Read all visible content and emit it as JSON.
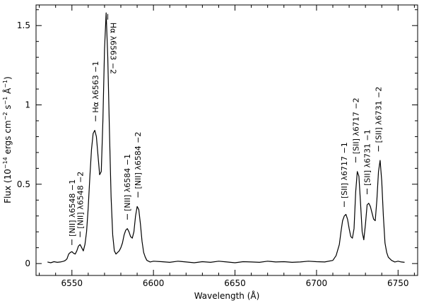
{
  "chart_data": {
    "type": "line",
    "title": "",
    "xlabel": "Wavelength (Å)",
    "ylabel": "Flux (10^-14 ergs cm^-2 s^-1 Å^-1)",
    "ylabel_parts": {
      "prefix": "Flux (10",
      "exp1": "−14",
      "mid1": " ergs cm",
      "exp2": "−2",
      "mid2": " s",
      "exp3": "−1",
      "mid3": " Å",
      "exp4": "−1",
      "suffix": ")"
    },
    "xlim": [
      6528,
      6762
    ],
    "ylim": [
      -0.075,
      1.63
    ],
    "xticks": [
      6550,
      6600,
      6650,
      6700,
      6750
    ],
    "yticks": [
      0,
      0.5,
      1,
      1.5
    ],
    "xtick_labels": [
      "6550",
      "6600",
      "6650",
      "6700",
      "6750"
    ],
    "ytick_labels": [
      "0",
      "0.5",
      "1",
      "1.5"
    ],
    "grid": false,
    "series": [
      {
        "x": [
          6535,
          6537,
          6539,
          6541,
          6543,
          6545,
          6546,
          6547,
          6548,
          6549,
          6550,
          6551,
          6552,
          6553,
          6554,
          6555,
          6556,
          6557,
          6558,
          6559,
          6560,
          6561,
          6562,
          6563,
          6564,
          6565,
          6566,
          6567,
          6568,
          6569,
          6570,
          6571,
          6572,
          6573,
          6574,
          6575,
          6576,
          6577,
          6578,
          6579,
          6580,
          6581,
          6582,
          6583,
          6584,
          6585,
          6586,
          6587,
          6588,
          6589,
          6590,
          6591,
          6592,
          6593,
          6594,
          6595,
          6596,
          6598,
          6600,
          6605,
          6610,
          6615,
          6620,
          6625,
          6630,
          6635,
          6640,
          6645,
          6650,
          6655,
          6660,
          6665,
          6670,
          6675,
          6680,
          6685,
          6690,
          6695,
          6700,
          6705,
          6710,
          6712,
          6714,
          6715,
          6716,
          6717,
          6718,
          6719,
          6720,
          6721,
          6722,
          6723,
          6724,
          6725,
          6726,
          6727,
          6728,
          6729,
          6730,
          6731,
          6732,
          6733,
          6734,
          6735,
          6736,
          6737,
          6738,
          6739,
          6740,
          6741,
          6742,
          6743,
          6744,
          6746,
          6748,
          6750,
          6752,
          6754
        ],
        "y": [
          0.01,
          0.005,
          0.012,
          0.008,
          0.01,
          0.015,
          0.02,
          0.03,
          0.06,
          0.07,
          0.075,
          0.065,
          0.06,
          0.08,
          0.11,
          0.12,
          0.1,
          0.08,
          0.12,
          0.2,
          0.35,
          0.55,
          0.72,
          0.82,
          0.84,
          0.8,
          0.68,
          0.56,
          0.58,
          0.9,
          1.35,
          1.58,
          1.3,
          0.85,
          0.42,
          0.18,
          0.08,
          0.06,
          0.07,
          0.08,
          0.1,
          0.13,
          0.18,
          0.21,
          0.22,
          0.2,
          0.17,
          0.16,
          0.2,
          0.3,
          0.36,
          0.34,
          0.25,
          0.14,
          0.07,
          0.04,
          0.02,
          0.01,
          0.015,
          0.012,
          0.008,
          0.015,
          0.01,
          0.005,
          0.012,
          0.008,
          0.015,
          0.01,
          0.005,
          0.012,
          0.01,
          0.008,
          0.015,
          0.01,
          0.012,
          0.008,
          0.01,
          0.015,
          0.012,
          0.01,
          0.02,
          0.05,
          0.12,
          0.2,
          0.27,
          0.3,
          0.31,
          0.28,
          0.22,
          0.17,
          0.16,
          0.22,
          0.45,
          0.58,
          0.55,
          0.38,
          0.2,
          0.15,
          0.25,
          0.37,
          0.38,
          0.36,
          0.32,
          0.28,
          0.27,
          0.4,
          0.58,
          0.65,
          0.52,
          0.3,
          0.13,
          0.07,
          0.04,
          0.02,
          0.01,
          0.015,
          0.01,
          0.008
        ]
      }
    ],
    "annotations": [
      {
        "text": "[NII] λ6548 −1",
        "x": 6550,
        "y": 0.09,
        "anchor_y": 0.09
      },
      {
        "text": "[NII] λ6548 −2",
        "x": 6555,
        "y": 0.14,
        "anchor_y": 0.14
      },
      {
        "text": "Hα λ6563 −1",
        "x": 6564.5,
        "y": 0.87,
        "anchor_y": 0.87
      },
      {
        "text": "Hα λ6563 −2",
        "x": 6572,
        "y": 1.6,
        "anchor_y": 1.6,
        "side": "below"
      },
      {
        "text": "[NII] λ6584 −1",
        "x": 6584,
        "y": 0.25,
        "anchor_y": 0.25
      },
      {
        "text": "[NII] λ6584 −2",
        "x": 6590.5,
        "y": 0.39,
        "anchor_y": 0.39
      },
      {
        "text": "[SII] λ6717 −1",
        "x": 6717,
        "y": 0.33,
        "anchor_y": 0.33
      },
      {
        "text": "[SII] λ6717 −2",
        "x": 6724,
        "y": 0.61,
        "anchor_y": 0.61
      },
      {
        "text": "[SII] λ6731 −1",
        "x": 6731,
        "y": 0.41,
        "anchor_y": 0.41
      },
      {
        "text": "[SII] λ6731 −2",
        "x": 6738,
        "y": 0.68,
        "anchor_y": 0.68
      }
    ]
  }
}
